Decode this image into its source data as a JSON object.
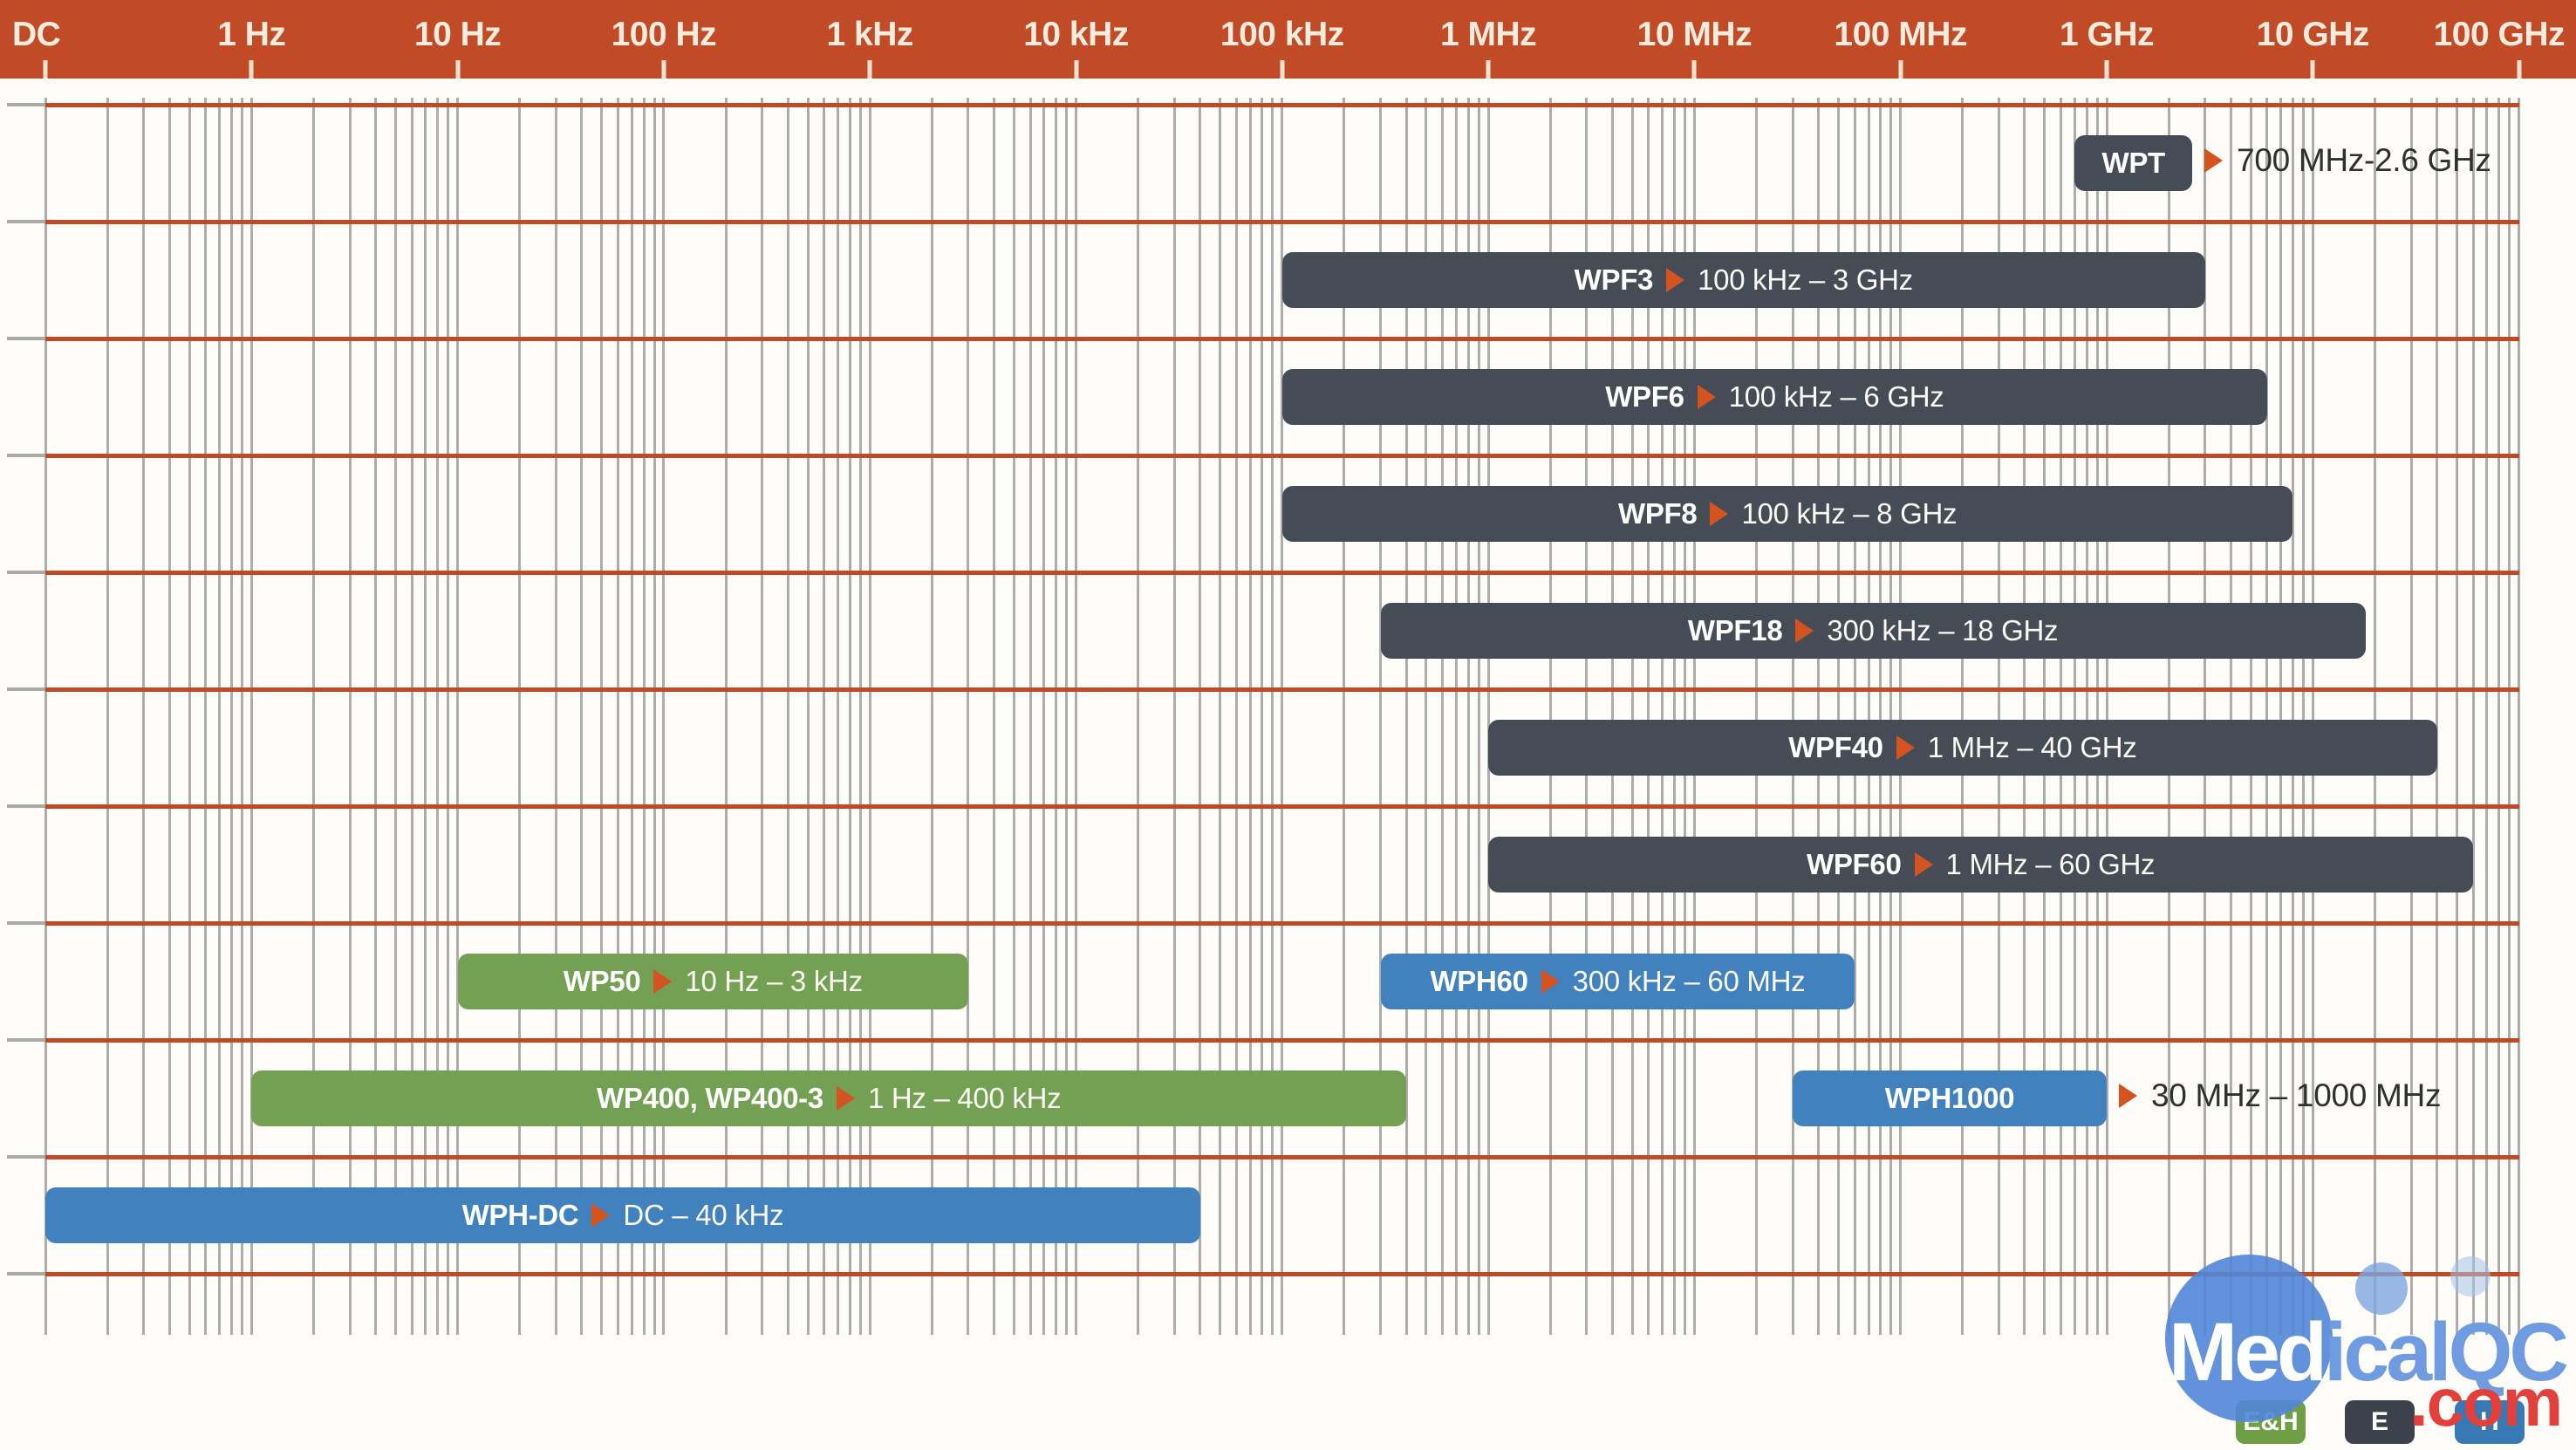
{
  "colors": {
    "header_bg": "#c24b27",
    "row_line": "#bf4a25",
    "gridline": "#acacac",
    "bar_dark": "#454c55",
    "bar_green": "#74a053",
    "bar_blue": "#4181bd",
    "triangle": "#d4531e",
    "outside_text": "#2f2f2f",
    "legend_green": "#6f9f45",
    "legend_dark": "#3b424c",
    "legend_blue": "#3779b5",
    "logo_blue": "#6f9be0",
    "logo_red": "#e3403c"
  },
  "chart_data": {
    "type": "range-bar",
    "x_axis": {
      "scale": "log",
      "unit": "Hz",
      "tick_labels": [
        "DC",
        "1 Hz",
        "10 Hz",
        "100 Hz",
        "1 kHz",
        "10 kHz",
        "100 kHz",
        "1 MHz",
        "10 MHz",
        "100 MHz",
        "1 GHz",
        "10 GHz",
        "100 GHz"
      ],
      "range_hz": [
        0,
        100000000000
      ]
    },
    "grid": {
      "minor_log_gridlines": true,
      "row_separator_lines": 11
    },
    "series": [
      {
        "model": "WPT",
        "range_text": "700 MHz-2.6 GHz",
        "start_hz": 700000000,
        "end_hz": 2600000000,
        "row": 0,
        "style": "dark",
        "range_outside": true
      },
      {
        "model": "WPF3",
        "range_text": "100 kHz – 3 GHz",
        "start_hz": 100000,
        "end_hz": 3000000000,
        "row": 1,
        "style": "dark",
        "range_outside": false
      },
      {
        "model": "WPF6",
        "range_text": "100 kHz – 6 GHz",
        "start_hz": 100000,
        "end_hz": 6000000000,
        "row": 2,
        "style": "dark",
        "range_outside": false
      },
      {
        "model": "WPF8",
        "range_text": "100 kHz – 8 GHz",
        "start_hz": 100000,
        "end_hz": 8000000000,
        "row": 3,
        "style": "dark",
        "range_outside": false
      },
      {
        "model": "WPF18",
        "range_text": "300 kHz – 18 GHz",
        "start_hz": 300000,
        "end_hz": 18000000000,
        "row": 4,
        "style": "dark",
        "range_outside": false
      },
      {
        "model": "WPF40",
        "range_text": "1 MHz – 40 GHz",
        "start_hz": 1000000,
        "end_hz": 40000000000,
        "row": 5,
        "style": "dark",
        "range_outside": false
      },
      {
        "model": "WPF60",
        "range_text": "1 MHz – 60 GHz",
        "start_hz": 1000000,
        "end_hz": 60000000000,
        "row": 6,
        "style": "dark",
        "range_outside": false
      },
      {
        "model": "WP50",
        "range_text": "10 Hz – 3 kHz",
        "start_hz": 10,
        "end_hz": 3000,
        "row": 7,
        "style": "green",
        "range_outside": false
      },
      {
        "model": "WPH60",
        "range_text": "300 kHz – 60 MHz",
        "start_hz": 300000,
        "end_hz": 60000000,
        "row": 7,
        "style": "blue",
        "range_outside": false
      },
      {
        "model": "WP400, WP400-3",
        "range_text": "1 Hz – 400 kHz",
        "start_hz": 1,
        "end_hz": 400000,
        "row": 8,
        "style": "green",
        "range_outside": false
      },
      {
        "model": "WPH1000",
        "range_text": "30 MHz – 1000 MHz",
        "start_hz": 30000000,
        "end_hz": 1000000000,
        "row": 8,
        "style": "blue",
        "range_outside": true
      },
      {
        "model": "WPH-DC",
        "range_text": "DC – 40 kHz",
        "start_hz": 0,
        "end_hz": 40000,
        "row": 9,
        "style": "blue",
        "range_outside": false
      }
    ],
    "legend": [
      {
        "label": "E&H",
        "style": "green"
      },
      {
        "label": "E",
        "style": "dark"
      },
      {
        "label": "H",
        "style": "blue"
      }
    ]
  },
  "watermark": {
    "part1": "Med",
    "part2": "icalQC",
    "suffix": ".com"
  }
}
